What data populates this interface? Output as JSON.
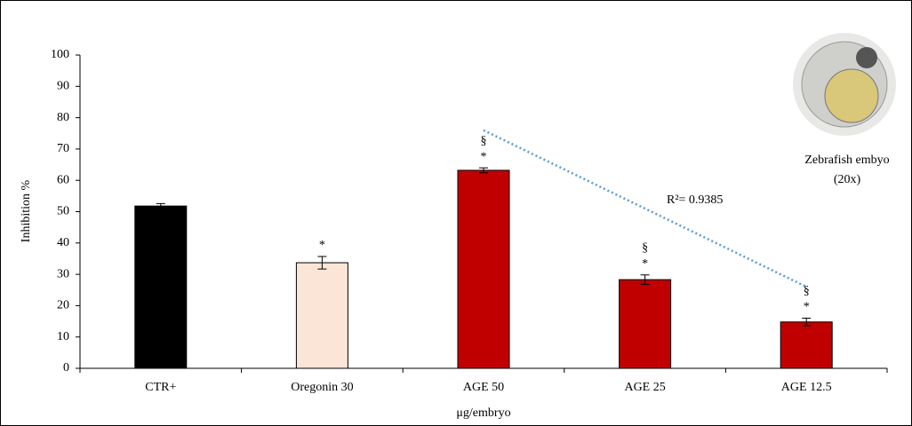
{
  "chart_data": {
    "type": "bar",
    "y_label": "Inhibition %",
    "x_label": "μg/embryo",
    "categories": [
      "CTR+",
      "Oregonin 30",
      "AGE 50",
      "AGE 25",
      "AGE 12.5"
    ],
    "values": [
      51.8,
      33.7,
      63.2,
      28.3,
      14.8
    ],
    "errors": [
      0.8,
      2,
      0.8,
      1.5,
      1.2
    ],
    "colors": [
      "#000000",
      "#fbe5d6",
      "#c00000",
      "#c00000",
      "#c00000"
    ],
    "marker1": [
      null,
      "*",
      "*",
      "*",
      "*"
    ],
    "marker2": [
      null,
      null,
      "§",
      "§",
      "§"
    ],
    "trendline": {
      "values": [
        null,
        null,
        76,
        null,
        26
      ],
      "color": "#5b9bd5"
    },
    "annotation": "R²= 0.9385",
    "image_caption": [
      "Zebrafish embyo",
      "(20x)"
    ],
    "ylim": [
      0,
      100
    ],
    "yticks": [
      0,
      10,
      20,
      30,
      40,
      50,
      60,
      70,
      80,
      90,
      100
    ]
  }
}
